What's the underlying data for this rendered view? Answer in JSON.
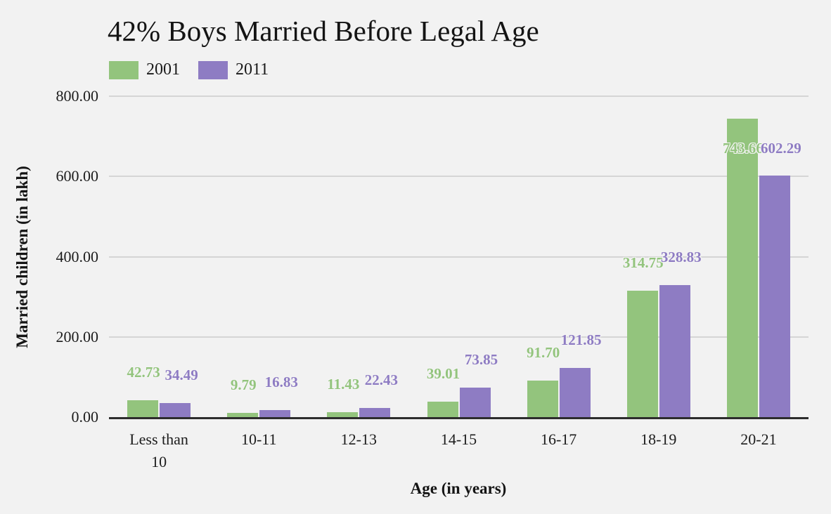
{
  "chart_data": {
    "type": "bar",
    "title": "42% Boys Married Before Legal Age",
    "xlabel": "Age (in years)",
    "ylabel": "Married children (in lakh)",
    "categories": [
      "Less than 10",
      "10-11",
      "12-13",
      "14-15",
      "16-17",
      "18-19",
      "20-21"
    ],
    "series": [
      {
        "name": "2001",
        "color": "#93c47d",
        "values": [
          42.73,
          9.79,
          11.43,
          39.01,
          91.7,
          314.75,
          743.66
        ]
      },
      {
        "name": "2011",
        "color": "#8e7cc3",
        "values": [
          34.49,
          16.83,
          22.43,
          73.85,
          121.85,
          328.83,
          602.29
        ]
      }
    ],
    "ylim": [
      0,
      800
    ],
    "yticks": [
      0,
      200,
      400,
      600,
      800
    ],
    "ytick_labels": [
      "0.00",
      "200.00",
      "400.00",
      "600.00",
      "800.00"
    ],
    "grid": true,
    "legend_position": "top-left",
    "value_labels": true
  },
  "colors": {
    "background": "#f2f2f2",
    "grid": "#d5d5d5",
    "axis_line": "#2d2d2d",
    "text": "#1a1a1a",
    "series_2001": "#93c47d",
    "series_2011": "#8e7cc3"
  }
}
